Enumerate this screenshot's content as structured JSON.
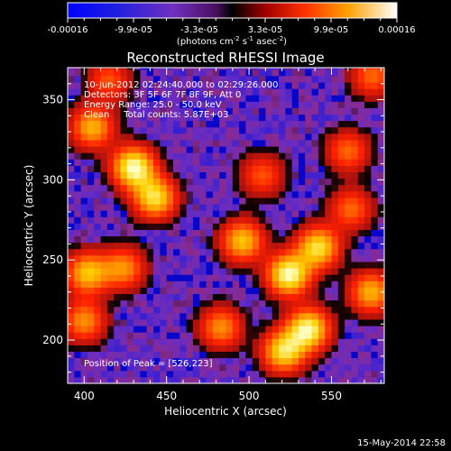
{
  "colorbar": {
    "tick_labels": [
      "-0.00016",
      "-9.9e-05",
      "-3.3e-05",
      "3.3e-05",
      "9.9e-05",
      "0.00016"
    ],
    "unit_main": "(photons cm",
    "unit_sup1": "-2",
    "unit_mid": " s",
    "unit_sup2": "-1",
    "unit_mid2": " asec",
    "unit_sup3": "-2",
    "unit_end": ")"
  },
  "title": "Reconstructed RHESSI Image",
  "annotations": {
    "line1": "10-Jun-2012 02:24:40.000 to 02:29:26.000",
    "line2": "Detectors: 3F 5F 6F 7F 8F 9F, Att 0",
    "line3": "Energy Range: 25.0 - 50.0 keV",
    "line4": "Clean     Total counts: 5.87E+03",
    "peak": "Position of Peak = [526,223]"
  },
  "xlabel": "Heliocentric X (arcsec)",
  "ylabel": "Heliocentric Y (arcsec)",
  "footer_date": "15-May-2014 22:58",
  "chart_data": {
    "type": "heatmap",
    "title": "Reconstructed RHESSI Image",
    "xlabel": "Heliocentric X (arcsec)",
    "ylabel": "Heliocentric Y (arcsec)",
    "xlim": [
      390,
      582
    ],
    "ylim": [
      173,
      370
    ],
    "xticks": [
      400,
      450,
      500,
      550
    ],
    "yticks": [
      200,
      250,
      300,
      350
    ],
    "colorbar_range": [
      -0.00016,
      0.00016
    ],
    "colormap": [
      "#0000c8",
      "#3a1fd0",
      "#6a2cc0",
      "#8a2a90",
      "#000000",
      "#a01010",
      "#ff2000",
      "#ff8000",
      "#ffd000",
      "#ffffc0"
    ],
    "peak_position": [
      526,
      223
    ],
    "hotspots": [
      {
        "x": 430,
        "y": 308,
        "intensity": 1.0
      },
      {
        "x": 443,
        "y": 289,
        "intensity": 0.85
      },
      {
        "x": 405,
        "y": 333,
        "intensity": 0.7
      },
      {
        "x": 524,
        "y": 241,
        "intensity": 1.0
      },
      {
        "x": 542,
        "y": 258,
        "intensity": 0.85
      },
      {
        "x": 496,
        "y": 262,
        "intensity": 0.75
      },
      {
        "x": 536,
        "y": 207,
        "intensity": 0.95
      },
      {
        "x": 521,
        "y": 193,
        "intensity": 0.85
      },
      {
        "x": 483,
        "y": 208,
        "intensity": 0.6
      },
      {
        "x": 402,
        "y": 242,
        "intensity": 0.75
      },
      {
        "x": 424,
        "y": 245,
        "intensity": 0.6
      },
      {
        "x": 400,
        "y": 212,
        "intensity": 0.6
      },
      {
        "x": 574,
        "y": 230,
        "intensity": 0.7
      },
      {
        "x": 562,
        "y": 282,
        "intensity": 0.5
      },
      {
        "x": 508,
        "y": 303,
        "intensity": 0.45
      },
      {
        "x": 575,
        "y": 365,
        "intensity": 0.5
      },
      {
        "x": 560,
        "y": 318,
        "intensity": 0.5
      },
      {
        "x": 415,
        "y": 362,
        "intensity": 0.45
      }
    ]
  }
}
